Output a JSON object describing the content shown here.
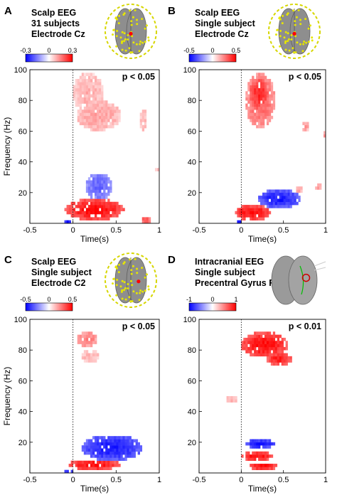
{
  "figure": {
    "ylabel": "Frequency (Hz)",
    "xlabel": "Time(s)"
  },
  "chart_data": [
    {
      "type": "heatmap",
      "panel": "A",
      "title_lines": [
        "Scalp EEG",
        "31 subjects",
        "Electrode Cz"
      ],
      "pvalue": "p < 0.05",
      "colorbar": {
        "min_label": "-0.3",
        "mid_label": "0",
        "max_label": "0.3",
        "range": [
          -0.3,
          0.3
        ]
      },
      "xlabel": "Time(s)",
      "ylabel": "Frequency (Hz)",
      "xlim": [
        -0.5,
        1
      ],
      "ylim": [
        0,
        100
      ],
      "xticks": [
        "-0.5",
        "0",
        "0.5",
        "1"
      ],
      "yticks": [
        "20",
        "40",
        "60",
        "80",
        "100"
      ],
      "head_type": "scalp",
      "electrode": [
        0,
        0.1
      ],
      "regions": [
        {
          "sign": 1,
          "t0": 0.0,
          "t1": 0.35,
          "f0": 72,
          "f1": 98,
          "intensity": 0.3
        },
        {
          "sign": 1,
          "t0": 0.05,
          "t1": 0.55,
          "f0": 60,
          "f1": 80,
          "intensity": 0.35
        },
        {
          "sign": 1,
          "t0": 0.78,
          "t1": 0.85,
          "f0": 60,
          "f1": 75,
          "intensity": 0.3
        },
        {
          "sign": 1,
          "t0": 0.96,
          "t1": 1.0,
          "f0": 33,
          "f1": 36,
          "intensity": 0.3
        },
        {
          "sign": -1,
          "t0": 0.15,
          "t1": 0.45,
          "f0": 15,
          "f1": 33,
          "intensity": 0.6
        },
        {
          "sign": 1,
          "t0": -0.1,
          "t1": 0.6,
          "f0": 2,
          "f1": 16,
          "intensity": 0.95
        },
        {
          "sign": 1,
          "t0": 0.78,
          "t1": 0.9,
          "f0": 0,
          "f1": 4,
          "intensity": 0.7
        },
        {
          "sign": -1,
          "t0": -0.1,
          "t1": -0.02,
          "f0": 0,
          "f1": 3,
          "intensity": 1.0
        }
      ]
    },
    {
      "type": "heatmap",
      "panel": "B",
      "title_lines": [
        "Scalp EEG",
        "Single subject",
        "Electrode Cz"
      ],
      "pvalue": "p < 0.05",
      "colorbar": {
        "min_label": "-0.5",
        "mid_label": "0",
        "max_label": "0.5",
        "range": [
          -0.5,
          0.5
        ]
      },
      "xlabel": "Time(s)",
      "ylabel": "Frequency (Hz)",
      "xlim": [
        -0.5,
        1
      ],
      "ylim": [
        0,
        100
      ],
      "xticks": [
        "-0.5",
        "0",
        "0.5",
        "1"
      ],
      "yticks": [
        "20",
        "40",
        "60",
        "80",
        "100"
      ],
      "head_type": "scalp",
      "electrode": [
        0,
        0.1
      ],
      "regions": [
        {
          "sign": 1,
          "t0": 0.05,
          "t1": 0.4,
          "f0": 62,
          "f1": 98,
          "intensity": 0.6
        },
        {
          "sign": 1,
          "t0": 0.1,
          "t1": 0.32,
          "f0": 75,
          "f1": 95,
          "intensity": 0.85
        },
        {
          "sign": 1,
          "t0": 0.72,
          "t1": 0.8,
          "f0": 60,
          "f1": 66,
          "intensity": 0.4
        },
        {
          "sign": 1,
          "t0": 0.98,
          "t1": 1.0,
          "f0": 55,
          "f1": 60,
          "intensity": 0.4
        },
        {
          "sign": 1,
          "t0": 0.65,
          "t1": 0.72,
          "f0": 20,
          "f1": 24,
          "intensity": 0.4
        },
        {
          "sign": 1,
          "t0": 0.88,
          "t1": 0.95,
          "f0": 22,
          "f1": 26,
          "intensity": 0.4
        },
        {
          "sign": -1,
          "t0": 0.2,
          "t1": 0.7,
          "f0": 10,
          "f1": 22,
          "intensity": 0.9
        },
        {
          "sign": 1,
          "t0": -0.08,
          "t1": 0.35,
          "f0": 2,
          "f1": 12,
          "intensity": 0.95
        },
        {
          "sign": -1,
          "t0": -0.05,
          "t1": 0.0,
          "f0": 0,
          "f1": 3,
          "intensity": 1.0
        }
      ]
    },
    {
      "type": "heatmap",
      "panel": "C",
      "title_lines": [
        "Scalp EEG",
        "Single subject",
        "Electrode C2"
      ],
      "pvalue": "p < 0.05",
      "colorbar": {
        "min_label": "-0.5",
        "mid_label": "0",
        "max_label": "0.5",
        "range": [
          -0.5,
          0.5
        ]
      },
      "xlabel": "Time(s)",
      "ylabel": "Frequency (Hz)",
      "xlim": [
        -0.5,
        1
      ],
      "ylim": [
        0,
        100
      ],
      "xticks": [
        "-0.5",
        "0",
        "0.5",
        "1"
      ],
      "yticks": [
        "20",
        "40",
        "60",
        "80",
        "100"
      ],
      "head_type": "scalp",
      "electrode": [
        0.35,
        0.05
      ],
      "regions": [
        {
          "sign": 1,
          "t0": 0.05,
          "t1": 0.28,
          "f0": 82,
          "f1": 92,
          "intensity": 0.5
        },
        {
          "sign": 1,
          "t0": 0.1,
          "t1": 0.3,
          "f0": 72,
          "f1": 80,
          "intensity": 0.3
        },
        {
          "sign": -1,
          "t0": 0.1,
          "t1": 0.8,
          "f0": 8,
          "f1": 25,
          "intensity": 0.9
        },
        {
          "sign": 1,
          "t0": -0.05,
          "t1": 0.55,
          "f0": 2,
          "f1": 9,
          "intensity": 0.95
        },
        {
          "sign": -1,
          "t0": -0.1,
          "t1": 0.0,
          "f0": 0,
          "f1": 3,
          "intensity": 0.9
        }
      ]
    },
    {
      "type": "heatmap",
      "panel": "D",
      "title_lines": [
        "Intracranial EEG",
        "Single subject",
        "Precentral Gyrus R"
      ],
      "pvalue": "p < 0.01",
      "colorbar": {
        "min_label": "-1",
        "mid_label": "0",
        "max_label": "1",
        "range": [
          -1,
          1
        ]
      },
      "xlabel": "Time(s)",
      "ylabel": "Frequency (Hz)",
      "xlim": [
        -0.5,
        1
      ],
      "ylim": [
        0,
        100
      ],
      "xticks": [
        "-0.5",
        "0",
        "0.5",
        "1"
      ],
      "yticks": [
        "20",
        "40",
        "60",
        "80",
        "100"
      ],
      "head_type": "brain",
      "electrode": [
        0.55,
        -0.1
      ],
      "regions": [
        {
          "sign": 1,
          "t0": 0.0,
          "t1": 0.55,
          "f0": 75,
          "f1": 92,
          "intensity": 0.95
        },
        {
          "sign": 1,
          "t0": 0.3,
          "t1": 0.6,
          "f0": 70,
          "f1": 78,
          "intensity": 0.9
        },
        {
          "sign": 1,
          "t0": -0.18,
          "t1": -0.05,
          "f0": 46,
          "f1": 50,
          "intensity": 0.3
        },
        {
          "sign": -1,
          "t0": 0.05,
          "t1": 0.4,
          "f0": 16,
          "f1": 22,
          "intensity": 0.95
        },
        {
          "sign": 1,
          "t0": 0.0,
          "t1": 0.38,
          "f0": 8,
          "f1": 14,
          "intensity": 0.95
        },
        {
          "sign": 1,
          "t0": 0.1,
          "t1": 0.42,
          "f0": 2,
          "f1": 7,
          "intensity": 0.95
        }
      ]
    }
  ]
}
